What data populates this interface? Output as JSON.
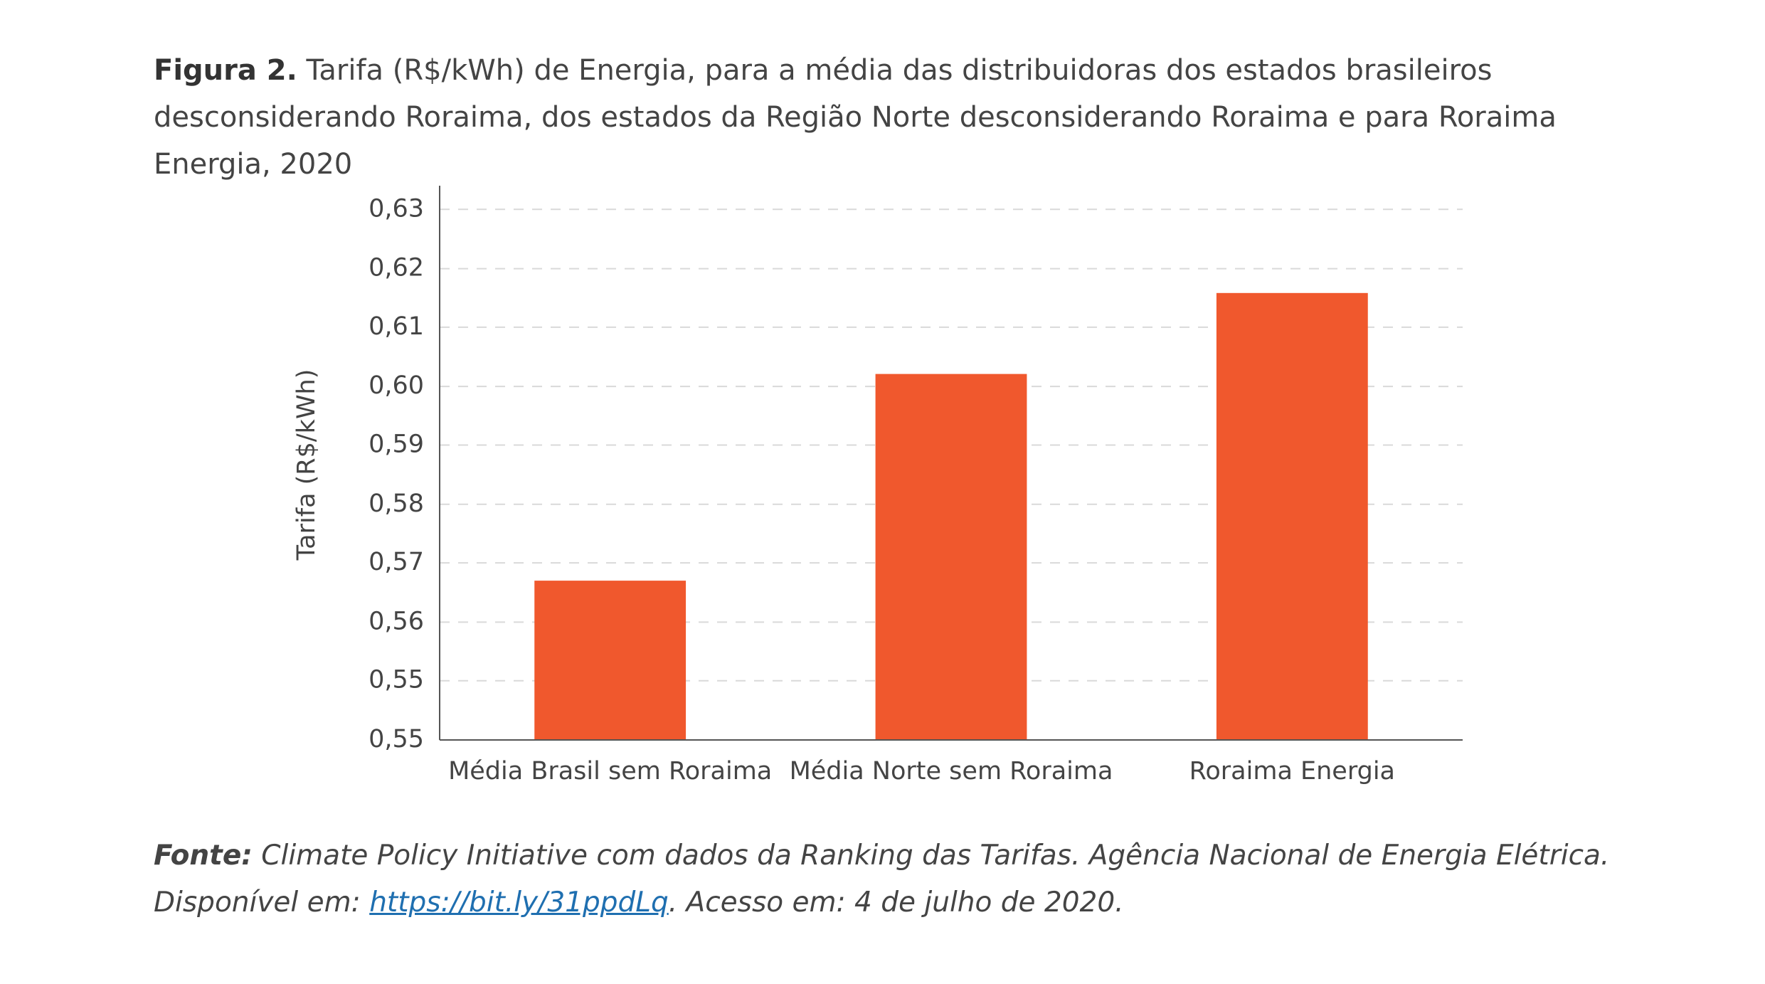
{
  "header": {
    "label": "Figura 2.",
    "title": "Tarifa (R$/kWh) de Energia, para a média das distribuidoras dos estados brasileiros desconsiderando Roraima, dos estados da Região Norte desconsiderando Roraima e para Roraima Energia, 2020"
  },
  "chart_data": {
    "type": "bar",
    "y_label": "Tarifa (R$/kWh)",
    "categories": [
      "Média Brasil sem Roraima",
      "Média Norte sem Roraima",
      "Roraima Energia"
    ],
    "values": [
      0.5697,
      0.6011,
      0.6134
    ],
    "color": "#f0582d",
    "ylim": [
      0.5455,
      0.6297
    ],
    "yticks": [
      {
        "value": 0.5455,
        "label": "0,55"
      },
      {
        "value": 0.5545,
        "label": "0,55"
      },
      {
        "value": 0.5634,
        "label": "0,56"
      },
      {
        "value": 0.5724,
        "label": "0,57"
      },
      {
        "value": 0.5813,
        "label": "0,58"
      },
      {
        "value": 0.5903,
        "label": "0,59"
      },
      {
        "value": 0.5992,
        "label": "0,60"
      },
      {
        "value": 0.6082,
        "label": "0,61"
      },
      {
        "value": 0.6171,
        "label": "0,62"
      },
      {
        "value": 0.6261,
        "label": "0,63"
      }
    ],
    "grid": true
  },
  "source": {
    "label": "Fonte:",
    "text_before": "Climate Policy Initiative com dados da Ranking das Tarifas. Agência Nacional de Energia Elétrica. Disponível em:",
    "link": "https://bit.ly/31ppdLq",
    "text_after": ". Acesso em: 4 de julho de 2020."
  }
}
